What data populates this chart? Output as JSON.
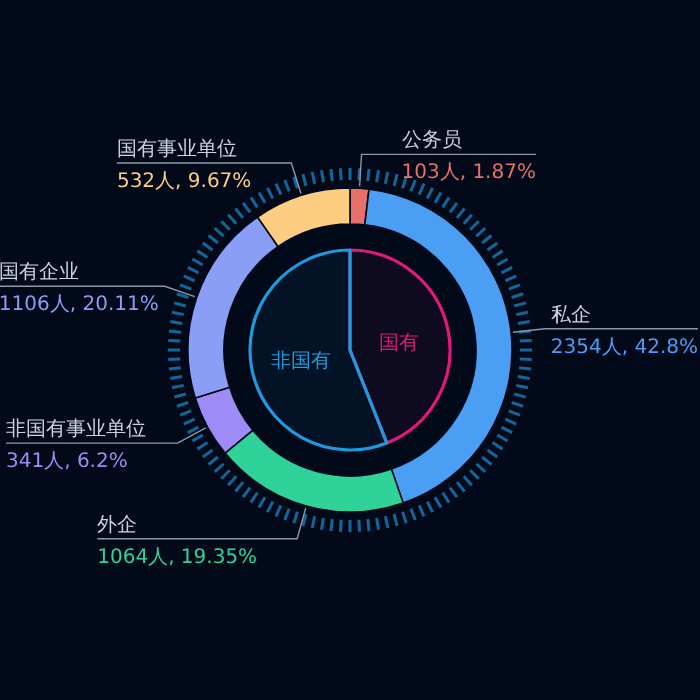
{
  "chart_data": [
    {
      "type": "donut",
      "categories": [
        "公务员",
        "私企",
        "外企",
        "非国有事业单位",
        "国有企业",
        "国有事业单位"
      ],
      "values": [
        103,
        2354,
        1064,
        341,
        1106,
        532
      ],
      "colors": [
        "#e8706a",
        "#4a9ff5",
        "#2fd39a",
        "#9d8cf5",
        "#8b9ef5",
        "#fdcd82"
      ],
      "value_labels": [
        "103人, 1.87%",
        "2354人, 42.8%",
        "1064人, 19.35%",
        "341人, 6.2%",
        "1106人, 20.11%",
        "532人, 9.67%"
      ]
    },
    {
      "type": "pie",
      "categories": [
        "国有",
        "非国有"
      ],
      "values": [
        44,
        56
      ],
      "colors": [
        "#e0197a",
        "#1e9be0"
      ]
    }
  ]
}
